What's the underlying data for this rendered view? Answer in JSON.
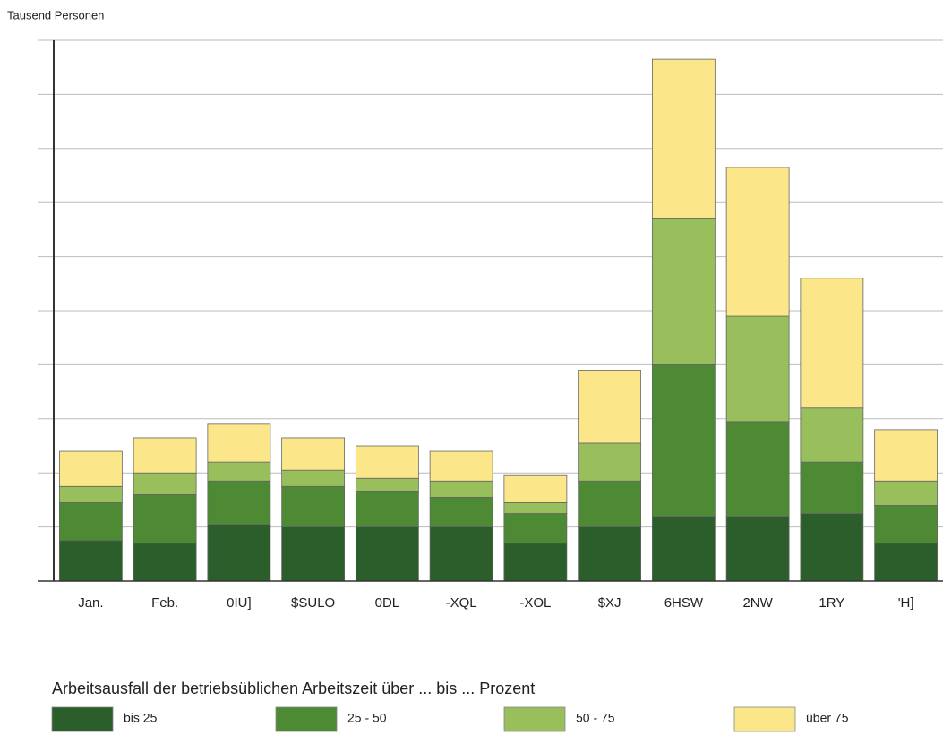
{
  "chart_data": {
    "type": "stacked_bar",
    "y_label": "Tausend Personen",
    "legend_title": "Arbeitsausfall der betriebsüblichen Arbeitszeit über ... bis ... Prozent",
    "categories": [
      "Jan.",
      "Feb.",
      "0IU]",
      "$SULO",
      "0DL",
      "-XQL",
      "-XOL",
      "$XJ",
      "6HSW",
      "2NW",
      "1RY",
      "'H]"
    ],
    "series": [
      {
        "name": "bis 25",
        "color": "#2b5e2b",
        "values": [
          0.75,
          0.7,
          1.05,
          1.0,
          1.0,
          1.0,
          0.7,
          1.0,
          1.2,
          1.2,
          1.25,
          0.7
        ]
      },
      {
        "name": "25 - 50",
        "color": "#4e8a34",
        "values": [
          0.7,
          0.9,
          0.8,
          0.75,
          0.65,
          0.55,
          0.55,
          0.85,
          2.8,
          1.75,
          0.95,
          0.7
        ]
      },
      {
        "name": "50 - 75",
        "color": "#98bf5c",
        "values": [
          0.3,
          0.4,
          0.35,
          0.3,
          0.25,
          0.3,
          0.2,
          0.7,
          2.7,
          1.95,
          1.0,
          0.45
        ]
      },
      {
        "name": "über 75",
        "color": "#fbe68a",
        "values": [
          0.65,
          0.65,
          0.7,
          0.6,
          0.6,
          0.55,
          0.5,
          1.35,
          2.95,
          2.75,
          2.4,
          0.95
        ]
      }
    ],
    "ylim": [
      0,
      10
    ],
    "yticks": [
      0,
      1,
      2,
      3,
      4,
      5,
      6,
      7,
      8,
      9,
      10
    ],
    "grid": true
  }
}
